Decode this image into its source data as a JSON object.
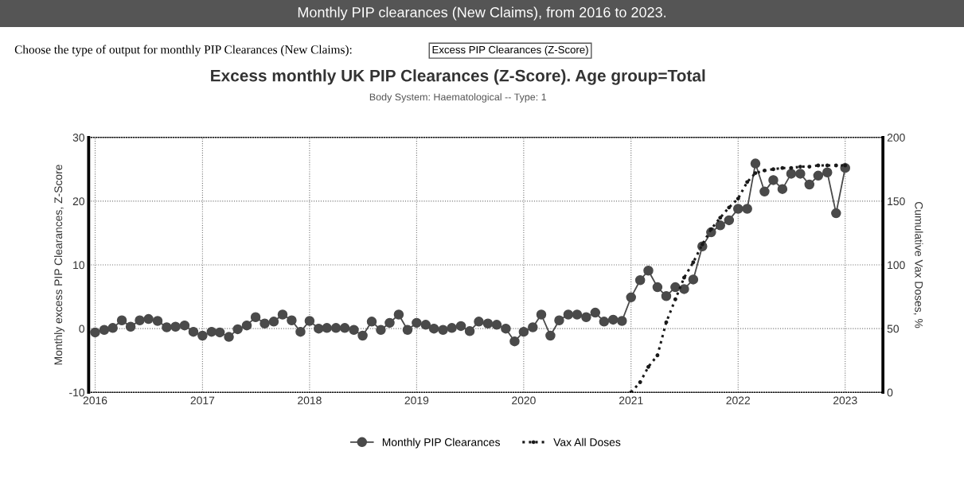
{
  "chart_data": {
    "type": "line",
    "title": "Excess monthly UK PIP Clearances (Z-Score). Age group=Total",
    "subtitle": "Body System: Haematological -- Type: 1",
    "ylabel": "Monthly excess PIP Clearances, Z-Score",
    "y2label": "Cumulative Vax Doses, %",
    "annotations": [
      "Monthly PIP clearances (New Claims), from 2016 to 2023.",
      "Choose the type of output for monthly PIP Clearances (New Claims):",
      "Excess PIP Clearances (Z-Score)"
    ],
    "xlim": [
      "2015-12-10",
      "2023-05-10"
    ],
    "xticks": [
      {
        "value": "2016-01-01",
        "label": "2016"
      },
      {
        "value": "2017-01-01",
        "label": "2017"
      },
      {
        "value": "2018-01-01",
        "label": "2018"
      },
      {
        "value": "2019-01-01",
        "label": "2019"
      },
      {
        "value": "2020-01-01",
        "label": "2020"
      },
      {
        "value": "2021-01-01",
        "label": "2021"
      },
      {
        "value": "2022-01-01",
        "label": "2022"
      },
      {
        "value": "2023-01-01",
        "label": "2023"
      }
    ],
    "ylim": [
      -10,
      30
    ],
    "yticks": [
      -10,
      0,
      10,
      20,
      30
    ],
    "y2lim": [
      0,
      200
    ],
    "y2ticks": [
      0,
      50,
      100,
      150,
      200
    ],
    "grid": true,
    "legend": "bottom",
    "series": [
      {
        "name": "Monthly PIP Clearances",
        "color": "#4a4a4a",
        "marker": "circle",
        "line_style": "solid",
        "x": [
          "2016-01",
          "2016-02",
          "2016-03",
          "2016-04",
          "2016-05",
          "2016-06",
          "2016-07",
          "2016-08",
          "2016-09",
          "2016-10",
          "2016-11",
          "2016-12",
          "2017-01",
          "2017-02",
          "2017-03",
          "2017-04",
          "2017-05",
          "2017-06",
          "2017-07",
          "2017-08",
          "2017-09",
          "2017-10",
          "2017-11",
          "2017-12",
          "2018-01",
          "2018-02",
          "2018-03",
          "2018-04",
          "2018-05",
          "2018-06",
          "2018-07",
          "2018-08",
          "2018-09",
          "2018-10",
          "2018-11",
          "2018-12",
          "2019-01",
          "2019-02",
          "2019-03",
          "2019-04",
          "2019-05",
          "2019-06",
          "2019-07",
          "2019-08",
          "2019-09",
          "2019-10",
          "2019-11",
          "2019-12",
          "2020-01",
          "2020-02",
          "2020-03",
          "2020-04",
          "2020-05",
          "2020-06",
          "2020-07",
          "2020-08",
          "2020-09",
          "2020-10",
          "2020-11",
          "2020-12",
          "2021-01",
          "2021-02",
          "2021-03",
          "2021-04",
          "2021-05",
          "2021-06",
          "2021-07",
          "2021-08",
          "2021-09",
          "2021-10",
          "2021-11",
          "2021-12",
          "2022-01",
          "2022-02",
          "2022-03",
          "2022-04",
          "2022-05",
          "2022-06",
          "2022-07",
          "2022-08",
          "2022-09",
          "2022-10",
          "2022-11",
          "2022-12",
          "2023-01"
        ],
        "values": [
          -0.6,
          -0.2,
          0.1,
          1.3,
          0.3,
          1.3,
          1.5,
          1.2,
          0.2,
          0.3,
          0.5,
          -0.5,
          -1.1,
          -0.5,
          -0.6,
          -1.3,
          -0.1,
          0.5,
          1.8,
          0.8,
          1.1,
          2.2,
          1.3,
          -0.5,
          1.2,
          0,
          0.1,
          0.1,
          0.1,
          -0.2,
          -1.1,
          1.1,
          -0.2,
          0.9,
          2.2,
          -0.2,
          0.9,
          0.6,
          0,
          -0.2,
          0.1,
          0.4,
          -0.4,
          1.1,
          0.8,
          0.6,
          0,
          -2.0,
          -0.5,
          0.2,
          2.2,
          -1.1,
          1.3,
          2.2,
          2.2,
          1.8,
          2.5,
          1.1,
          1.4,
          1.2,
          4.9,
          7.6,
          9.1,
          6.5,
          5.1,
          6.5,
          6.2,
          7.7,
          12.9,
          15.1,
          16.2,
          17.0,
          18.8,
          18.8,
          25.9,
          21.5,
          23.3,
          21.9,
          24.3,
          24.3,
          22.6,
          24.0,
          24.5,
          18.1,
          25.2
        ]
      },
      {
        "name": "Vax All Doses",
        "axis": "y2",
        "color": "#1a1a1a",
        "marker": "circle",
        "line_style": "dotted",
        "x": [
          "2021-01",
          "2021-02",
          "2021-03",
          "2021-04",
          "2021-05",
          "2021-06",
          "2021-07",
          "2021-08",
          "2021-09",
          "2021-10",
          "2021-11",
          "2021-12",
          "2022-01",
          "2022-02",
          "2022-03",
          "2022-04",
          "2022-05",
          "2022-06",
          "2022-07",
          "2022-08",
          "2022-09",
          "2022-10",
          "2022-11",
          "2022-12",
          "2023-01"
        ],
        "values": [
          0,
          8,
          20,
          29,
          55,
          73,
          90,
          102,
          116,
          128,
          137,
          145,
          152,
          165,
          172,
          174,
          175,
          176,
          176,
          177,
          177,
          178,
          178,
          178,
          178
        ]
      }
    ]
  }
}
